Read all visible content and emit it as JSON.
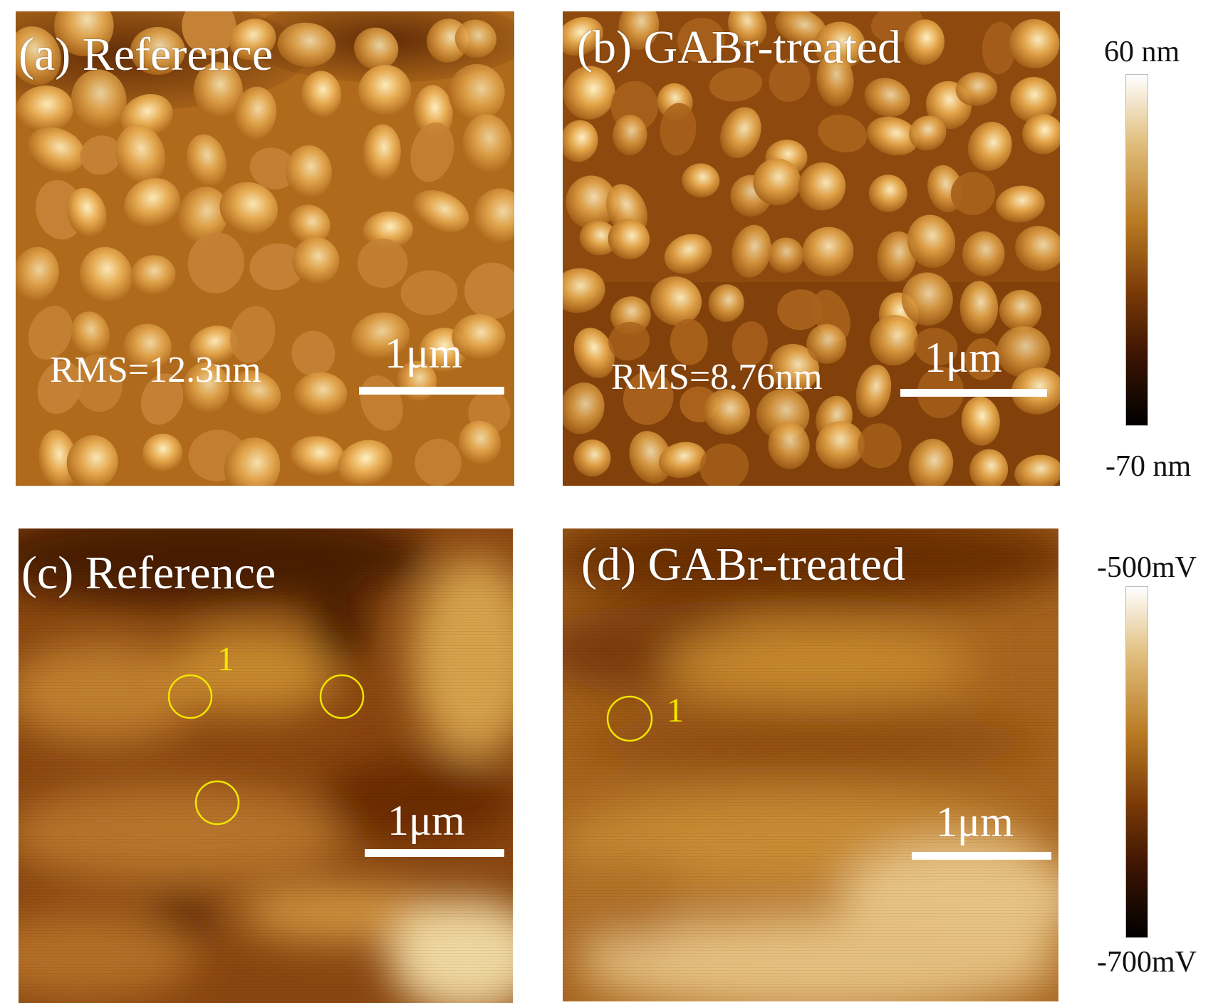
{
  "panels": {
    "a": {
      "label": "(a) Reference",
      "rms": "RMS=12.3nm",
      "scale": "1μm"
    },
    "b": {
      "label": "(b) GABr-treated",
      "rms": "RMS=8.76nm",
      "scale": "1μm"
    },
    "c": {
      "label": "(c) Reference",
      "scale": "1μm",
      "marker_number": "1"
    },
    "d": {
      "label": "(d) GABr-treated",
      "scale": "1μm",
      "marker_number": "1"
    }
  },
  "colorbars": {
    "height": {
      "top": "60 nm",
      "bottom": "-70 nm"
    },
    "potential": {
      "top": "-500mV",
      "bottom": "-700mV"
    }
  },
  "colors": {
    "topography_low": "#3a1500",
    "topography_high": "#fff0c8",
    "marker": "#f2e600",
    "text": "#ffffff"
  }
}
